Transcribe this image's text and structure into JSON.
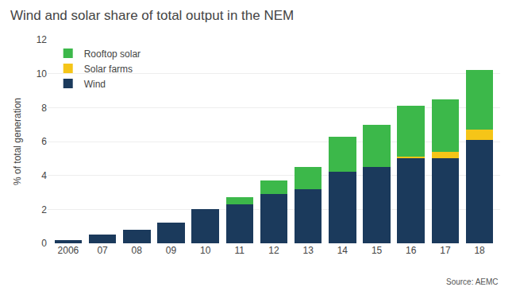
{
  "chart_data": {
    "type": "bar",
    "stacked": true,
    "title": "Wind and solar share of total output in the NEM",
    "ylabel": "% of total generation",
    "annotations": [
      "Source: AEMC"
    ],
    "categories": [
      "2006",
      "07",
      "08",
      "09",
      "10",
      "11",
      "12",
      "13",
      "14",
      "15",
      "16",
      "17",
      "18"
    ],
    "series": [
      {
        "name": "Wind",
        "color": "#1b3a5c",
        "values": [
          0.2,
          0.5,
          0.8,
          1.2,
          2.0,
          2.3,
          2.9,
          3.2,
          4.2,
          4.5,
          5.0,
          5.0,
          6.1
        ]
      },
      {
        "name": "Solar farms",
        "color": "#f5c518",
        "values": [
          0.0,
          0.0,
          0.0,
          0.0,
          0.0,
          0.0,
          0.0,
          0.0,
          0.0,
          0.0,
          0.1,
          0.4,
          0.6
        ]
      },
      {
        "name": "Rooftop solar",
        "color": "#3cb84a",
        "values": [
          0.0,
          0.0,
          0.0,
          0.0,
          0.0,
          0.4,
          0.8,
          1.3,
          2.1,
          2.5,
          3.0,
          3.1,
          3.5
        ]
      }
    ],
    "ylim": [
      0,
      12
    ],
    "yticks": [
      0,
      2,
      4,
      6,
      8,
      10,
      12
    ],
    "grid": true,
    "legend": "upper left"
  }
}
